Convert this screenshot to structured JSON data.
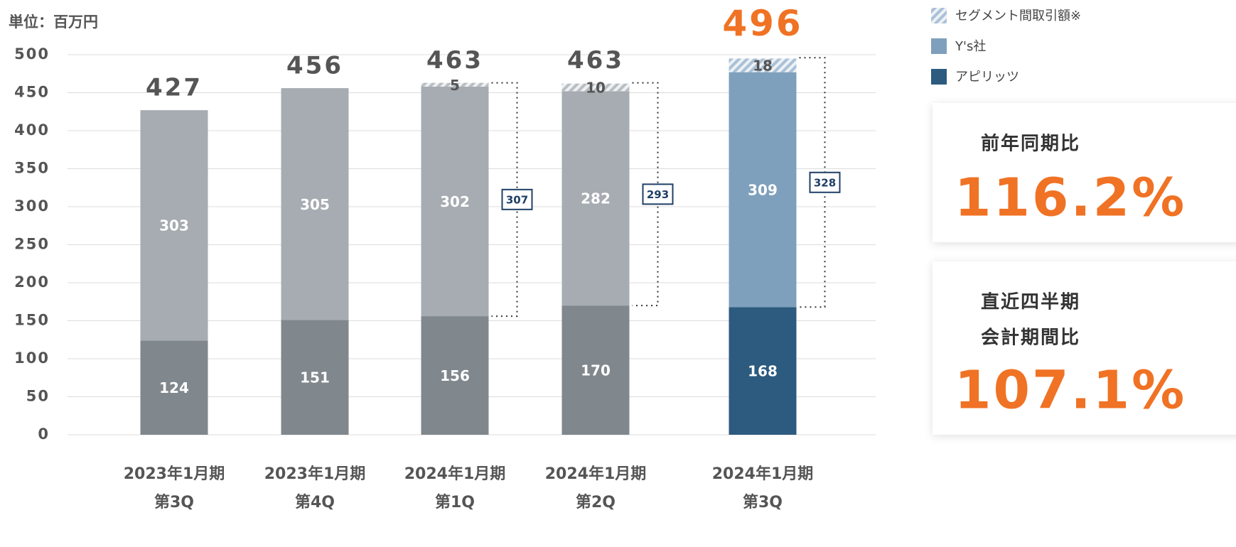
{
  "chart_data": {
    "type": "stacked_bar",
    "unit_label": "単位：百万円",
    "categories": [
      [
        "2023年1月期",
        "第3Q"
      ],
      [
        "2023年1月期",
        "第4Q"
      ],
      [
        "2024年1月期",
        "第1Q"
      ],
      [
        "2024年1月期",
        "第2Q"
      ],
      [
        "2024年1月期",
        "第3Q"
      ]
    ],
    "series": [
      {
        "name": "アピリッツ",
        "color": "#2d5a7f",
        "colors": [
          "#80878d",
          "#80878d",
          "#80878d",
          "#80878d",
          "#2d5a7f"
        ],
        "values": [
          124,
          151,
          156,
          170,
          168
        ]
      },
      {
        "name": "Y's社",
        "color": "#7fa0bc",
        "colors": [
          "#a6acb1",
          "#a6acb1",
          "#a6acb1",
          "#a6acb1",
          "#7fa0bc"
        ],
        "values": [
          303,
          305,
          302,
          282,
          309
        ]
      },
      {
        "name": "セグメント間取引額※",
        "color": "#a9c1d8",
        "colors": [
          "#b9bec2",
          "#b9bec2",
          "#b9bec2",
          "#b9bec2",
          "#a9c1d8"
        ],
        "pattern": "hatch",
        "values": [
          null,
          null,
          5,
          10,
          18
        ]
      }
    ],
    "totals": [
      427,
      456,
      463,
      463,
      496
    ],
    "highlight_total_color": "#f07224",
    "bracket_values": [
      null,
      null,
      307,
      293,
      328
    ],
    "ylim": [
      0,
      500
    ],
    "yticks": [
      0,
      50,
      100,
      150,
      200,
      250,
      300,
      350,
      400,
      450,
      500
    ],
    "grid": true
  },
  "panels": [
    {
      "title": [
        "前年同期比"
      ],
      "value": "116.2%"
    },
    {
      "title": [
        "直近四半期",
        "会計期間比"
      ],
      "value": "107.1%"
    }
  ]
}
